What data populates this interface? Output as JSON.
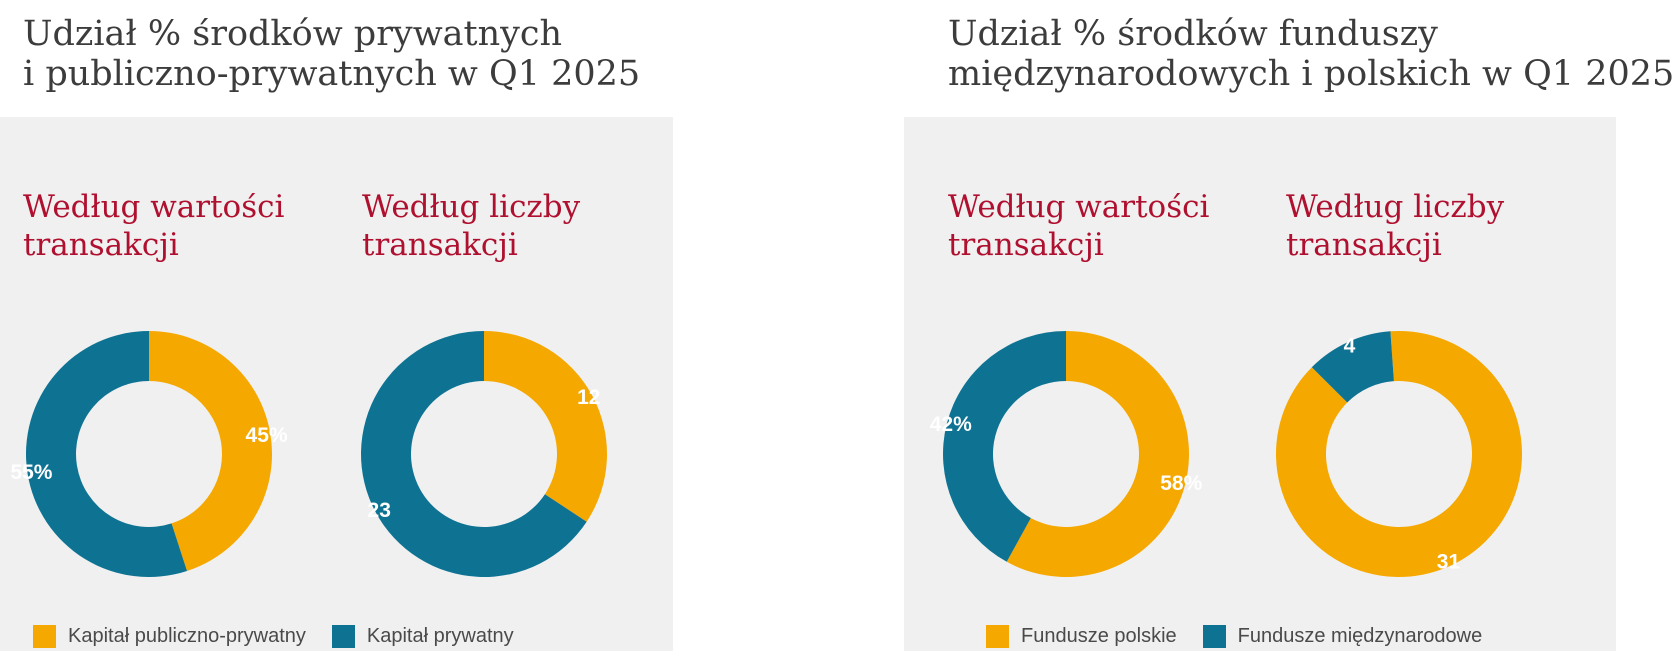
{
  "colors": {
    "gold": "#f5a800",
    "teal": "#0e7393"
  },
  "panels": [
    {
      "title_line1": "Udział % środków prywatnych",
      "title_line2": "i publiczno-prywatnych w Q1 2025",
      "left": {
        "line1": "Według wartości",
        "line2": "transakcji"
      },
      "right": {
        "line1": "Według liczby",
        "line2": "transakcji"
      },
      "legend": [
        "Kapitał publiczno-prywatny",
        "Kapitał prywatny"
      ]
    },
    {
      "title_line1": "Udział % środków funduszy",
      "title_line2": "międzynarodowych i polskich w Q1 2025",
      "left": {
        "line1": "Według wartości",
        "line2": "transakcji"
      },
      "right": {
        "line1": "Według liczby",
        "line2": "transakcji"
      },
      "legend": [
        "Fundusze polskie",
        "Fundusze międzynarodowe"
      ]
    }
  ],
  "chart_data": [
    {
      "type": "pie",
      "donut": true,
      "title": "Według wartości transakcji",
      "categories": [
        "Kapitał publiczno-prywatny",
        "Kapitał prywatny"
      ],
      "values": [
        45,
        55
      ],
      "labels": [
        "45%",
        "55%"
      ],
      "colors": [
        "gold",
        "teal"
      ]
    },
    {
      "type": "pie",
      "donut": true,
      "title": "Według liczby transakcji",
      "categories": [
        "Kapitał publiczno-prywatny",
        "Kapitał prywatny"
      ],
      "values": [
        12,
        23
      ],
      "labels": [
        "12",
        "23"
      ],
      "colors": [
        "gold",
        "teal"
      ]
    },
    {
      "type": "pie",
      "donut": true,
      "title": "Według wartości transakcji",
      "categories": [
        "Fundusze polskie",
        "Fundusze międzynarodowe"
      ],
      "values": [
        58,
        42
      ],
      "labels": [
        "58%",
        "42%"
      ],
      "colors": [
        "gold",
        "teal"
      ]
    },
    {
      "type": "pie",
      "donut": true,
      "title": "Według liczby transakcji",
      "categories": [
        "Fundusze polskie",
        "Fundusze międzynarodowe"
      ],
      "values": [
        31,
        4
      ],
      "labels": [
        "31",
        "4"
      ],
      "colors": [
        "gold",
        "teal"
      ]
    }
  ]
}
